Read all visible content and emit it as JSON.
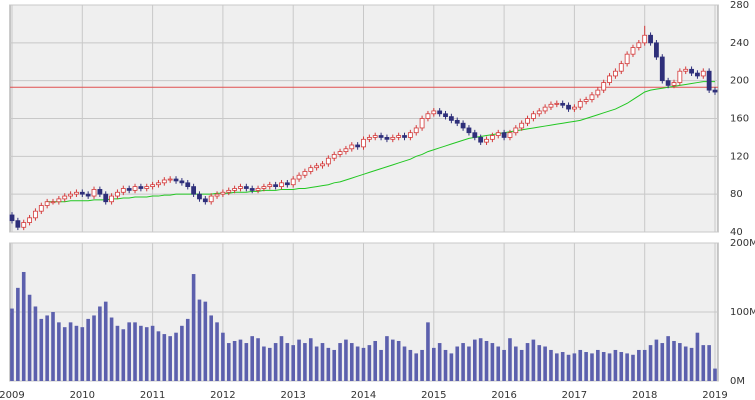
{
  "chart_data": {
    "type": "candlestick",
    "categories": [
      "2009",
      null,
      null,
      null,
      null,
      null,
      null,
      null,
      null,
      null,
      null,
      null,
      "2010",
      null,
      null,
      null,
      null,
      null,
      null,
      null,
      null,
      null,
      null,
      null,
      "2011",
      null,
      null,
      null,
      null,
      null,
      null,
      null,
      null,
      null,
      null,
      null,
      "2012",
      null,
      null,
      null,
      null,
      null,
      null,
      null,
      null,
      null,
      null,
      null,
      "2013",
      null,
      null,
      null,
      null,
      null,
      null,
      null,
      null,
      null,
      null,
      null,
      "2014",
      null,
      null,
      null,
      null,
      null,
      null,
      null,
      null,
      null,
      null,
      null,
      "2015",
      null,
      null,
      null,
      null,
      null,
      null,
      null,
      null,
      null,
      null,
      null,
      "2016",
      null,
      null,
      null,
      null,
      null,
      null,
      null,
      null,
      null,
      null,
      null,
      "2017",
      null,
      null,
      null,
      null,
      null,
      null,
      null,
      null,
      null,
      null,
      null,
      "2018",
      null,
      null,
      null,
      null,
      null,
      null,
      null,
      null,
      null,
      null,
      null,
      "2019"
    ],
    "open": [
      58,
      52,
      45,
      50,
      55,
      62,
      68,
      72,
      72,
      75,
      78,
      80,
      82,
      80,
      78,
      85,
      80,
      72,
      78,
      82,
      86,
      84,
      88,
      86,
      88,
      90,
      92,
      95,
      96,
      94,
      92,
      88,
      80,
      75,
      72,
      78,
      80,
      82,
      84,
      86,
      88,
      86,
      84,
      86,
      88,
      90,
      88,
      92,
      90,
      96,
      100,
      104,
      108,
      110,
      112,
      118,
      122,
      125,
      128,
      132,
      130,
      138,
      140,
      142,
      140,
      138,
      140,
      142,
      140,
      145,
      150,
      160,
      165,
      168,
      165,
      162,
      158,
      155,
      150,
      145,
      140,
      135,
      138,
      142,
      145,
      140,
      145,
      150,
      155,
      160,
      165,
      168,
      172,
      175,
      176,
      174,
      170,
      172,
      178,
      180,
      185,
      190,
      198,
      205,
      210,
      218,
      228,
      235,
      240,
      248,
      240,
      225,
      200,
      195,
      198,
      210,
      212,
      208,
      205,
      210,
      190
    ],
    "high": [
      61,
      55,
      53,
      58,
      65,
      71,
      75,
      75,
      78,
      81,
      83,
      85,
      85,
      83,
      88,
      88,
      83,
      81,
      85,
      89,
      89,
      91,
      91,
      91,
      93,
      95,
      98,
      99,
      99,
      97,
      95,
      91,
      83,
      78,
      81,
      83,
      85,
      87,
      89,
      91,
      91,
      89,
      89,
      91,
      93,
      93,
      95,
      95,
      99,
      103,
      107,
      111,
      113,
      115,
      121,
      125,
      128,
      131,
      135,
      135,
      141,
      143,
      145,
      145,
      143,
      143,
      145,
      145,
      148,
      153,
      163,
      168,
      171,
      171,
      168,
      165,
      161,
      158,
      153,
      148,
      143,
      141,
      145,
      148,
      148,
      148,
      153,
      158,
      163,
      168,
      171,
      175,
      178,
      179,
      179,
      177,
      175,
      181,
      183,
      188,
      193,
      201,
      208,
      213,
      221,
      231,
      238,
      243,
      258,
      251,
      243,
      228,
      203,
      201,
      213,
      215,
      215,
      211,
      213,
      213,
      193
    ],
    "low": [
      49,
      42,
      42,
      47,
      52,
      59,
      65,
      69,
      69,
      72,
      75,
      77,
      77,
      75,
      75,
      77,
      69,
      69,
      75,
      79,
      81,
      81,
      83,
      83,
      85,
      87,
      89,
      92,
      91,
      89,
      85,
      77,
      72,
      69,
      69,
      75,
      77,
      79,
      81,
      83,
      83,
      81,
      81,
      83,
      85,
      85,
      85,
      87,
      87,
      93,
      97,
      101,
      105,
      107,
      109,
      115,
      119,
      122,
      125,
      127,
      127,
      135,
      137,
      137,
      135,
      135,
      137,
      137,
      137,
      142,
      147,
      157,
      162,
      162,
      159,
      155,
      152,
      147,
      142,
      137,
      132,
      132,
      135,
      139,
      137,
      137,
      142,
      147,
      152,
      157,
      162,
      165,
      169,
      172,
      171,
      167,
      167,
      169,
      175,
      177,
      182,
      187,
      195,
      202,
      207,
      215,
      225,
      232,
      237,
      237,
      222,
      197,
      192,
      192,
      195,
      207,
      205,
      202,
      202,
      187,
      185
    ],
    "close": [
      52,
      45,
      50,
      55,
      62,
      68,
      72,
      72,
      75,
      78,
      80,
      82,
      80,
      78,
      85,
      80,
      72,
      78,
      82,
      86,
      84,
      88,
      86,
      88,
      90,
      92,
      95,
      96,
      94,
      92,
      88,
      80,
      75,
      72,
      78,
      80,
      82,
      84,
      86,
      88,
      86,
      84,
      86,
      88,
      90,
      88,
      92,
      90,
      96,
      100,
      104,
      108,
      110,
      112,
      118,
      122,
      125,
      128,
      132,
      130,
      138,
      140,
      142,
      140,
      138,
      140,
      142,
      140,
      145,
      150,
      160,
      165,
      168,
      165,
      162,
      158,
      155,
      150,
      145,
      140,
      135,
      138,
      142,
      145,
      140,
      145,
      150,
      155,
      160,
      165,
      168,
      172,
      175,
      176,
      174,
      170,
      172,
      178,
      180,
      185,
      190,
      198,
      205,
      210,
      218,
      228,
      235,
      240,
      248,
      240,
      225,
      200,
      195,
      198,
      210,
      212,
      208,
      205,
      210,
      190,
      188
    ],
    "up_color": "#d43a3a",
    "down_color": "#2e2f7a",
    "moving_average": {
      "color": "#22c722",
      "values": [
        null,
        null,
        null,
        null,
        null,
        null,
        72,
        72,
        72,
        72,
        73,
        73,
        73,
        73,
        74,
        74,
        74,
        75,
        75,
        76,
        76,
        77,
        77,
        77,
        78,
        78,
        79,
        79,
        80,
        80,
        80,
        80,
        80,
        80,
        80,
        81,
        81,
        81,
        82,
        82,
        82,
        83,
        83,
        84,
        84,
        84,
        85,
        85,
        85,
        86,
        86,
        87,
        88,
        89,
        90,
        92,
        93,
        95,
        97,
        99,
        101,
        103,
        105,
        107,
        109,
        111,
        113,
        115,
        117,
        120,
        122,
        125,
        127,
        129,
        131,
        133,
        135,
        137,
        139,
        140,
        141,
        142,
        143,
        144,
        145,
        146,
        147,
        148,
        149,
        150,
        151,
        152,
        153,
        154,
        155,
        156,
        157,
        158,
        160,
        162,
        164,
        166,
        168,
        170,
        173,
        176,
        180,
        184,
        188,
        190,
        191,
        192,
        193,
        194,
        195,
        196,
        197,
        198,
        199,
        199,
        199
      ]
    },
    "reference_line": {
      "value": 193,
      "color": "#e05050"
    },
    "ylim": [
      40,
      280
    ],
    "yticks": [
      40,
      80,
      120,
      160,
      200,
      240,
      280
    ],
    "grid": true,
    "volume": {
      "color": "#5c60ad",
      "values": [
        105,
        135,
        158,
        125,
        108,
        90,
        95,
        100,
        85,
        78,
        85,
        80,
        78,
        90,
        95,
        108,
        115,
        92,
        80,
        75,
        85,
        85,
        80,
        78,
        80,
        72,
        68,
        65,
        70,
        80,
        90,
        155,
        118,
        115,
        95,
        85,
        70,
        55,
        58,
        60,
        55,
        65,
        62,
        50,
        48,
        55,
        65,
        55,
        52,
        60,
        55,
        62,
        50,
        55,
        48,
        45,
        55,
        60,
        55,
        50,
        48,
        52,
        58,
        45,
        65,
        60,
        58,
        50,
        45,
        40,
        45,
        85,
        48,
        55,
        45,
        40,
        50,
        55,
        50,
        60,
        62,
        58,
        55,
        50,
        45,
        62,
        50,
        45,
        55,
        60,
        52,
        50,
        45,
        40,
        42,
        38,
        40,
        45,
        42,
        40,
        45,
        42,
        40,
        45,
        42,
        40,
        38,
        45,
        45,
        52,
        60,
        55,
        65,
        58,
        55,
        50,
        48,
        70,
        52,
        52,
        18
      ],
      "ylim": [
        0,
        200
      ],
      "yticks": [
        {
          "value": 0,
          "label": "0M"
        },
        {
          "value": 100,
          "label": "100M"
        },
        {
          "value": 200,
          "label": "200M"
        }
      ]
    }
  }
}
